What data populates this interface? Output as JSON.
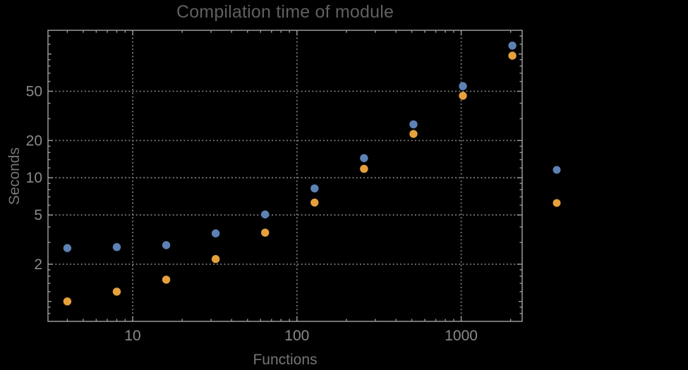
{
  "chart_data": {
    "type": "scatter",
    "title": "Compilation time of module",
    "xlabel": "Functions",
    "ylabel": "Seconds",
    "x_scale": "log",
    "y_scale": "log",
    "xlim": [
      3.05,
      2350
    ],
    "ylim": [
      0.69,
      155.5
    ],
    "x": [
      4,
      8,
      16,
      32,
      64,
      128,
      256,
      512,
      1024,
      2048
    ],
    "series": [
      {
        "marker_color": "#5E81B5",
        "values": [
          2.7,
          2.75,
          2.85,
          3.55,
          5.05,
          8.2,
          14.4,
          27,
          55,
          117
        ]
      },
      {
        "marker_color": "#E6A13C",
        "values": [
          1.0,
          1.2,
          1.5,
          2.2,
          3.6,
          6.3,
          11.8,
          22.6,
          46,
          97
        ]
      }
    ],
    "x_tick_values": [
      10,
      100,
      1000
    ],
    "x_tick_labels": [
      "10",
      "100",
      "1000"
    ],
    "x_minor_ticks": [
      4,
      5,
      6,
      7,
      8,
      9,
      20,
      30,
      40,
      50,
      60,
      70,
      80,
      90,
      200,
      300,
      400,
      500,
      600,
      700,
      800,
      900,
      2000
    ],
    "y_tick_values": [
      2,
      5,
      10,
      20,
      50
    ],
    "y_tick_labels": [
      "2",
      "5",
      "10",
      "20",
      "50"
    ],
    "y_medium_ticks": [
      1,
      100
    ],
    "y_minor_ticks": [
      0.8,
      0.9,
      1.2,
      1.4,
      1.6,
      1.8,
      3,
      4,
      6,
      7,
      8,
      9,
      12,
      14,
      16,
      18,
      30,
      40,
      60,
      70,
      80,
      90,
      120,
      140
    ],
    "grid": "dotted-on-major-ticks",
    "legend_position": "right-outside",
    "legend_markers": [
      {
        "color": "#5E81B5"
      },
      {
        "color": "#E6A13C"
      }
    ]
  },
  "colors": {
    "background": "#000000",
    "title_text": "#606060",
    "axis_label_text": "#757575",
    "tick_label_text": "#8A8A8A",
    "frame_line": "#999999",
    "grid_line": "#848484",
    "series_blue": "#5E81B5",
    "series_orange": "#E6A13C"
  }
}
